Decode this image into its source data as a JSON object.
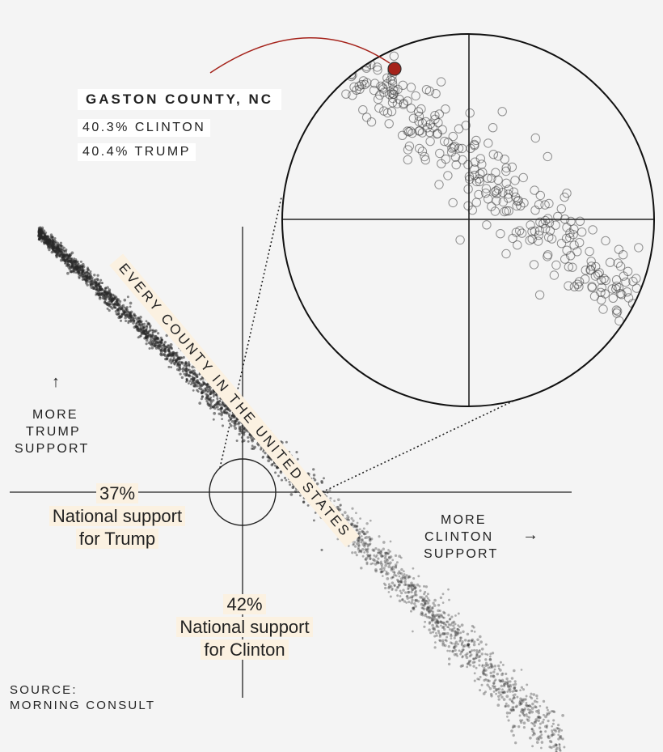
{
  "callout": {
    "title": "GASTON COUNTY, NC",
    "clinton": "40.3% CLINTON",
    "trump": "40.4% TRUMP"
  },
  "diagonal_label": "EVERY COUNTY IN THE UNITED STATES",
  "axis_labels": {
    "up_arrow": "↑",
    "trump_line1": "MORE",
    "trump_line2": "TRUMP",
    "trump_line3": "SUPPORT",
    "clinton_line1": "MORE",
    "clinton_line2": "CLINTON",
    "clinton_arrow": "→",
    "clinton_line3": "SUPPORT"
  },
  "national": {
    "trump_pct": "37%",
    "trump_line1": "National support",
    "trump_line2": "for Trump",
    "clinton_pct": "42%",
    "clinton_line1": "National support",
    "clinton_line2": "for Clinton"
  },
  "source": {
    "line1": "SOURCE:",
    "line2": "MORNING CONSULT"
  },
  "colors": {
    "background": "#f4f4f4",
    "highlight": "#fbf1e1",
    "callout_dot": "#a5231b",
    "callout_line": "#a5231b",
    "points": "#333333"
  },
  "chart_data": {
    "type": "scatter",
    "title": "Every county in the United States",
    "xlabel": "More Clinton support",
    "ylabel": "More Trump support",
    "national_trump_pct": 37,
    "national_clinton_pct": 42,
    "highlight": {
      "name": "Gaston County, NC",
      "clinton_pct": 40.3,
      "trump_pct": 40.4
    },
    "n_points": 2900,
    "trend": {
      "clinton_range": [
        5,
        85
      ],
      "trump_range": [
        5,
        80
      ]
    }
  }
}
